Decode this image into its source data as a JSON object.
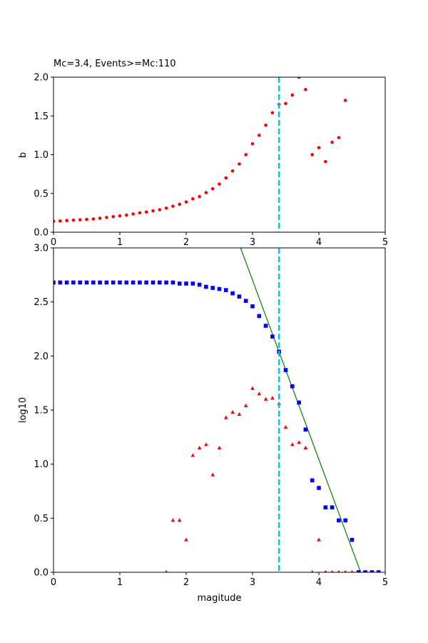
{
  "chart_data": [
    {
      "type": "scatter",
      "title": "Mc=3.4, Events>=Mc:110",
      "xlabel": "",
      "ylabel": "b",
      "xlim": [
        0,
        5
      ],
      "ylim": [
        0,
        2
      ],
      "xticks": [
        "0",
        "1",
        "2",
        "3",
        "4",
        "5"
      ],
      "yticks": [
        "0.0",
        "0.5",
        "1.0",
        "1.5",
        "2.0"
      ],
      "grid": false,
      "mc_line": {
        "x": 3.4,
        "color": "#17becf",
        "style": "dashed"
      },
      "series": [
        {
          "marker": "circle",
          "color": "#ff0000",
          "x": [
            0.0,
            0.1,
            0.2,
            0.3,
            0.4,
            0.5,
            0.6,
            0.7,
            0.8,
            0.9,
            1.0,
            1.1,
            1.2,
            1.3,
            1.4,
            1.5,
            1.6,
            1.7,
            1.8,
            1.9,
            2.0,
            2.1,
            2.2,
            2.3,
            2.4,
            2.5,
            2.6,
            2.7,
            2.8,
            2.9,
            3.0,
            3.1,
            3.2,
            3.3,
            3.4,
            3.5,
            3.6,
            3.7,
            3.8,
            3.9,
            4.0,
            4.1,
            4.2,
            4.3,
            4.4
          ],
          "y": [
            0.14,
            0.145,
            0.15,
            0.155,
            0.16,
            0.165,
            0.17,
            0.18,
            0.19,
            0.2,
            0.21,
            0.22,
            0.235,
            0.25,
            0.26,
            0.275,
            0.29,
            0.31,
            0.335,
            0.36,
            0.39,
            0.43,
            0.46,
            0.51,
            0.56,
            0.62,
            0.7,
            0.79,
            0.88,
            1.0,
            1.14,
            1.25,
            1.38,
            1.54,
            1.65,
            1.66,
            1.77,
            2.0,
            1.84,
            1.0,
            1.09,
            0.91,
            1.16,
            1.22,
            1.7
          ]
        }
      ]
    },
    {
      "type": "scatter",
      "title": "",
      "xlabel": "magitude",
      "ylabel": "log10",
      "xlim": [
        0,
        5
      ],
      "ylim": [
        0,
        3
      ],
      "xticks": [
        "0",
        "1",
        "2",
        "3",
        "4",
        "5"
      ],
      "yticks": [
        "0.0",
        "0.5",
        "1.0",
        "1.5",
        "2.0",
        "2.5",
        "3.0"
      ],
      "grid": false,
      "mc_line": {
        "x": 3.4,
        "color": "#17becf",
        "style": "dashed"
      },
      "fit_line": {
        "color": "#008000",
        "x": [
          2.82,
          4.63
        ],
        "y": [
          3.0,
          0.0
        ]
      },
      "series": [
        {
          "marker": "square",
          "color": "#0000ff",
          "x": [
            0.0,
            0.1,
            0.2,
            0.3,
            0.4,
            0.5,
            0.6,
            0.7,
            0.8,
            0.9,
            1.0,
            1.1,
            1.2,
            1.3,
            1.4,
            1.5,
            1.6,
            1.7,
            1.8,
            1.9,
            2.0,
            2.1,
            2.2,
            2.3,
            2.4,
            2.5,
            2.6,
            2.7,
            2.8,
            2.9,
            3.0,
            3.1,
            3.2,
            3.3,
            3.4,
            3.5,
            3.6,
            3.7,
            3.8,
            3.9,
            4.0,
            4.1,
            4.2,
            4.3,
            4.4,
            4.5,
            4.6,
            4.7,
            4.8,
            4.9
          ],
          "y": [
            2.68,
            2.68,
            2.68,
            2.68,
            2.68,
            2.68,
            2.68,
            2.68,
            2.68,
            2.68,
            2.68,
            2.68,
            2.68,
            2.68,
            2.68,
            2.68,
            2.68,
            2.68,
            2.68,
            2.67,
            2.67,
            2.67,
            2.66,
            2.64,
            2.63,
            2.62,
            2.61,
            2.58,
            2.55,
            2.51,
            2.46,
            2.37,
            2.28,
            2.18,
            2.04,
            1.87,
            1.72,
            1.57,
            1.32,
            0.85,
            0.78,
            0.6,
            0.6,
            0.48,
            0.48,
            0.3,
            0.0,
            0.0,
            0.0,
            0.0
          ]
        },
        {
          "marker": "triangle",
          "color": "#ff0000",
          "x": [
            1.7,
            1.8,
            1.9,
            2.0,
            2.1,
            2.2,
            2.3,
            2.4,
            2.5,
            2.6,
            2.7,
            2.8,
            2.9,
            3.0,
            3.1,
            3.2,
            3.3,
            3.4,
            3.5,
            3.6,
            3.7,
            3.8,
            3.9,
            4.0,
            4.1,
            4.2,
            4.3,
            4.4,
            4.5
          ],
          "y": [
            0.0,
            0.48,
            0.48,
            0.3,
            1.08,
            1.15,
            1.18,
            0.9,
            1.15,
            1.43,
            1.48,
            1.46,
            1.54,
            1.7,
            1.65,
            1.6,
            1.61,
            1.56,
            1.34,
            1.18,
            1.2,
            1.15,
            0.0,
            0.3,
            0.0,
            0.0,
            0.0,
            0.0,
            0.0
          ]
        }
      ]
    }
  ]
}
